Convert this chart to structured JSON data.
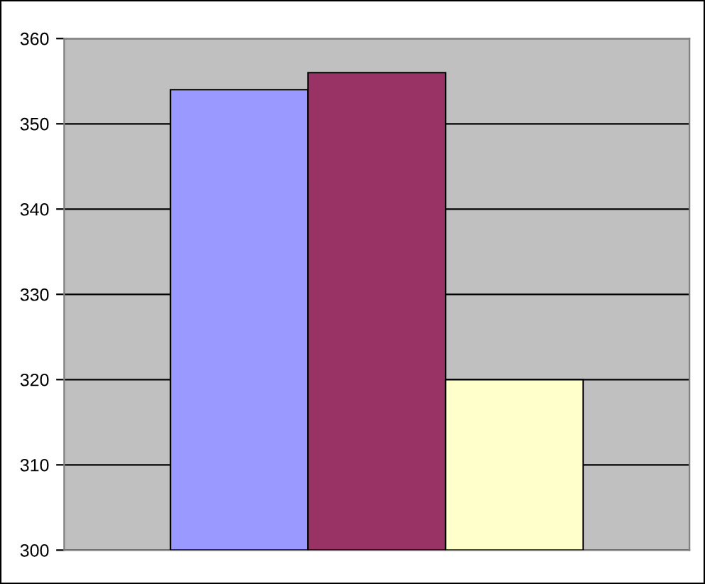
{
  "chart_data": {
    "type": "bar",
    "categories": [
      null
    ],
    "series": [
      {
        "color": "#9999ff",
        "values": [
          354
        ]
      },
      {
        "color": "#993366",
        "values": [
          356
        ]
      },
      {
        "color": "#ffffcc",
        "values": [
          320
        ]
      }
    ],
    "ylim": [
      300,
      360
    ],
    "yticks": [
      300,
      310,
      320,
      330,
      340,
      350,
      360
    ],
    "grid": "y"
  }
}
